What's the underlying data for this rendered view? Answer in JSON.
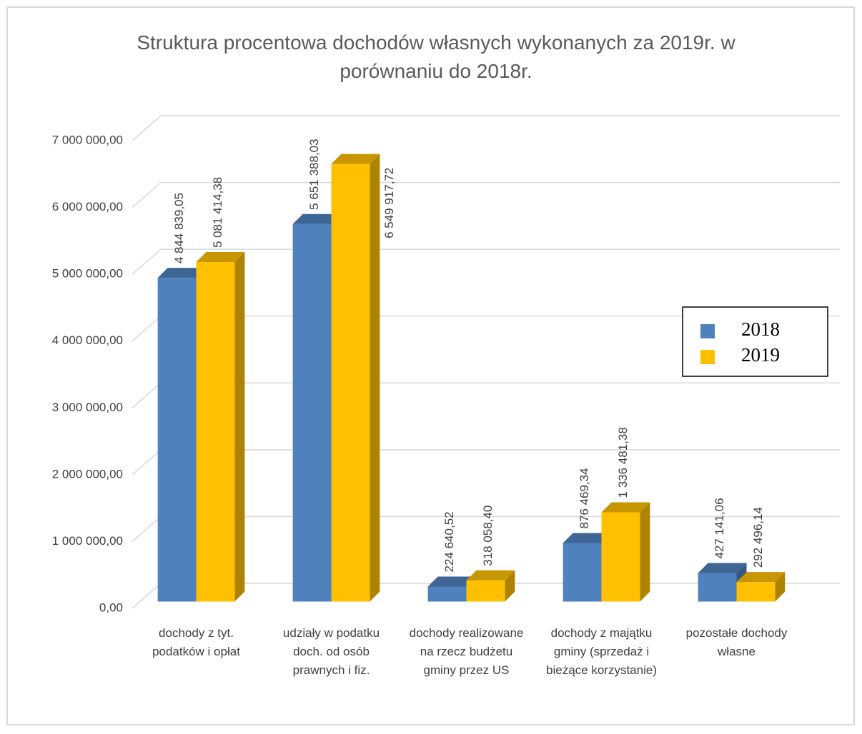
{
  "chart_data": {
    "type": "bar3d",
    "title": "Struktura procentowa dochodów własnych  wykonanych za 2019r. w porównaniu do 2018r.",
    "categories": [
      "dochody z tyt. podatków i opłat",
      "udziały w podatku doch. od osób prawnych i fiz.",
      "dochody realizowane na rzecz budżetu gminy przez US",
      "dochody z majątku gminy (sprzedaż i bieżące korzystanie)",
      "pozostałe dochody własne"
    ],
    "series": [
      {
        "name": "2018",
        "color": "#4f81bd",
        "values": [
          4844839.05,
          5651388.03,
          224640.52,
          876469.34,
          427141.06
        ],
        "value_labels": [
          "4 844 839,05",
          "5 651 388,03",
          "224 640,52",
          "876 469,34",
          "427 141,06"
        ]
      },
      {
        "name": "2019",
        "color": "#ffc000",
        "values": [
          5081414.38,
          6549917.72,
          318058.4,
          1336481.38,
          292496.14
        ],
        "value_labels": [
          "5 081 414,38",
          "6 549 917,72",
          "318 058,40",
          "1 336 481,38",
          "292 496,14"
        ]
      }
    ],
    "ylim": [
      0,
      7000000
    ],
    "yticks": [
      {
        "value": 0,
        "label": "0,00"
      },
      {
        "value": 1000000,
        "label": "1 000 000,00"
      },
      {
        "value": 2000000,
        "label": "2 000 000,00"
      },
      {
        "value": 3000000,
        "label": "3 000 000,00"
      },
      {
        "value": 4000000,
        "label": "4 000 000,00"
      },
      {
        "value": 5000000,
        "label": "5 000 000,00"
      },
      {
        "value": 6000000,
        "label": "6 000 000,00"
      },
      {
        "value": 7000000,
        "label": "7 000 000,00"
      }
    ],
    "grid": true,
    "legend": "right"
  }
}
